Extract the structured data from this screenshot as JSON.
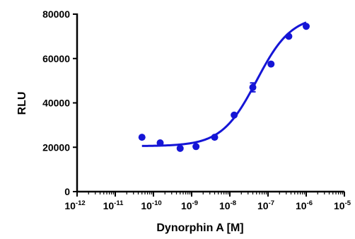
{
  "chart_data": {
    "type": "scatter",
    "xlabel": "Dynorphin A [M]",
    "ylabel": "RLU",
    "x_scale": "log",
    "xlim": [
      1e-12,
      1e-05
    ],
    "ylim": [
      0,
      80000
    ],
    "grid": false,
    "legend": "none",
    "y_ticks": [
      "0",
      "20000",
      "40000",
      "60000",
      "80000"
    ],
    "x_ticks": [
      {
        "base": "10",
        "exp": "-12"
      },
      {
        "base": "10",
        "exp": "-11"
      },
      {
        "base": "10",
        "exp": "-10"
      },
      {
        "base": "10",
        "exp": "-9"
      },
      {
        "base": "10",
        "exp": "-8"
      },
      {
        "base": "10",
        "exp": "-7"
      },
      {
        "base": "10",
        "exp": "-6"
      },
      {
        "base": "10",
        "exp": "-5"
      }
    ],
    "series": [
      {
        "color": "#1515d6",
        "points": [
          {
            "x": 5e-11,
            "y": 24500
          },
          {
            "x": 1.5e-10,
            "y": 22000
          },
          {
            "x": 5e-10,
            "y": 19500
          },
          {
            "x": 1.3e-09,
            "y": 20300
          },
          {
            "x": 4e-09,
            "y": 24500
          },
          {
            "x": 1.3e-08,
            "y": 34500
          },
          {
            "x": 4e-08,
            "y": 47000,
            "err": 2000
          },
          {
            "x": 1.2e-07,
            "y": 57500
          },
          {
            "x": 3.5e-07,
            "y": 70000
          },
          {
            "x": 1e-06,
            "y": 74500
          }
        ],
        "fit": {
          "type": "sigmoidal",
          "bottom": 20500,
          "top": 79500,
          "log_ec50": -7.3,
          "hill_slope": 0.95
        }
      }
    ]
  }
}
